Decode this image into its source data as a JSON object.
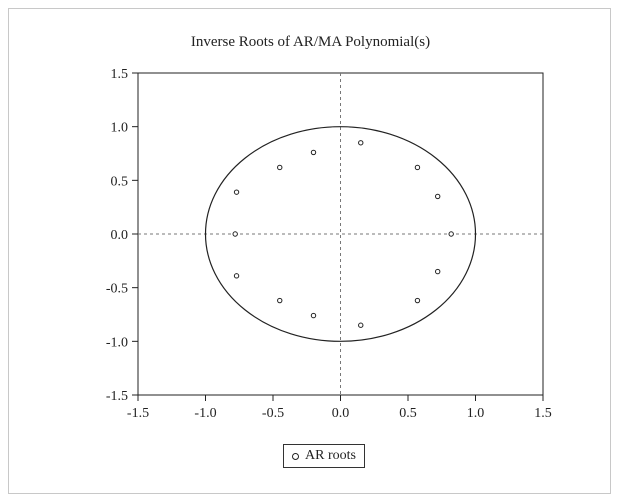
{
  "chart_data": {
    "type": "scatter",
    "title": "Inverse Roots of AR/MA Polynomial(s)",
    "xlabel": "",
    "ylabel": "",
    "xlim": [
      -1.5,
      1.5
    ],
    "ylim": [
      -1.5,
      1.5
    ],
    "x_ticks": [
      "-1.5",
      "-1.0",
      "-0.5",
      "0.0",
      "0.5",
      "1.0",
      "1.5"
    ],
    "y_ticks": [
      "1.5",
      "1.0",
      "0.5",
      "0.0",
      "-0.5",
      "-1.0",
      "-1.5"
    ],
    "unit_circle": true,
    "reference_lines": "dashed at x=0 and y=0",
    "legend_position": "bottom-center",
    "series": [
      {
        "name": "AR roots",
        "points": [
          [
            0.15,
            0.85
          ],
          [
            0.15,
            -0.85
          ],
          [
            0.57,
            0.62
          ],
          [
            0.57,
            -0.62
          ],
          [
            0.72,
            0.35
          ],
          [
            0.72,
            -0.35
          ],
          [
            0.82,
            0.0
          ],
          [
            -0.2,
            0.76
          ],
          [
            -0.2,
            -0.76
          ],
          [
            -0.45,
            0.62
          ],
          [
            -0.45,
            -0.62
          ],
          [
            -0.77,
            0.39
          ],
          [
            -0.77,
            -0.39
          ],
          [
            -0.78,
            0.0
          ]
        ]
      }
    ]
  }
}
